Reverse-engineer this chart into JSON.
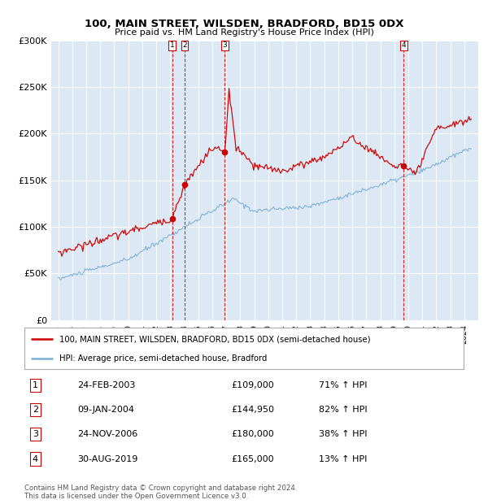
{
  "title": "100, MAIN STREET, WILSDEN, BRADFORD, BD15 0DX",
  "subtitle": "Price paid vs. HM Land Registry's House Price Index (HPI)",
  "background_color": "#dce9f5",
  "red_line_color": "#cc0000",
  "blue_line_color": "#7bafd4",
  "ylim": [
    0,
    300000
  ],
  "yticks": [
    0,
    50000,
    100000,
    150000,
    200000,
    250000,
    300000
  ],
  "legend_red": "100, MAIN STREET, WILSDEN, BRADFORD, BD15 0DX (semi-detached house)",
  "legend_blue": "HPI: Average price, semi-detached house, Bradford",
  "transactions": [
    {
      "num": 1,
      "date_str": "24-FEB-2003",
      "price": 109000,
      "pct": "71%",
      "x_year": 2003.13,
      "y_val": 109000
    },
    {
      "num": 2,
      "date_str": "09-JAN-2004",
      "price": 144950,
      "pct": "82%",
      "x_year": 2004.03,
      "y_val": 144950
    },
    {
      "num": 3,
      "date_str": "24-NOV-2006",
      "price": 180000,
      "pct": "38%",
      "x_year": 2006.9,
      "y_val": 180000
    },
    {
      "num": 4,
      "date_str": "30-AUG-2019",
      "price": 165000,
      "pct": "13%",
      "x_year": 2019.66,
      "y_val": 165000
    }
  ],
  "footer": "Contains HM Land Registry data © Crown copyright and database right 2024.\nThis data is licensed under the Open Government Licence v3.0.",
  "xlim": [
    1994.5,
    2025.0
  ],
  "xstart": 1995,
  "xend": 2025
}
